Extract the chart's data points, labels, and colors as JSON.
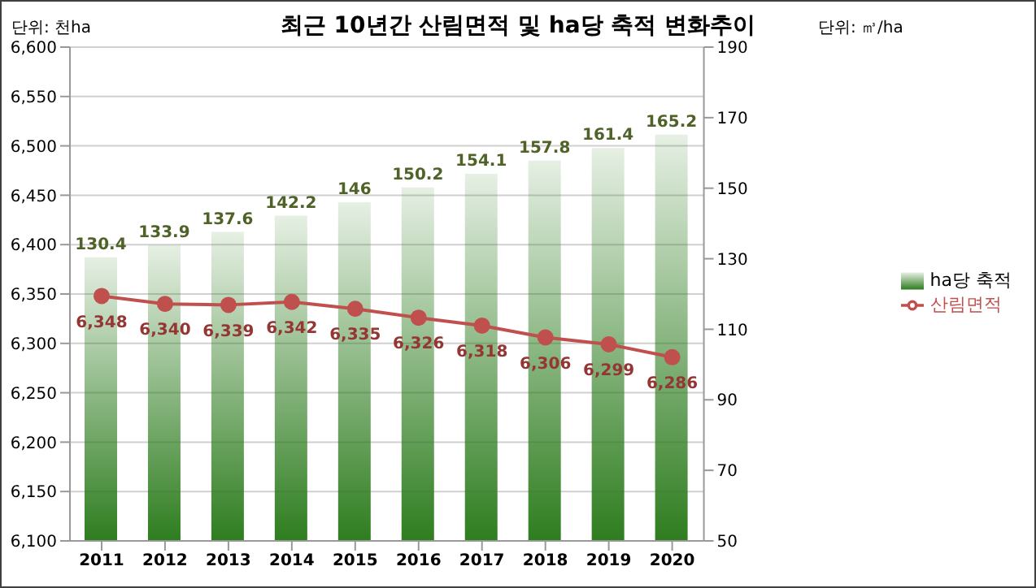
{
  "chart_data": {
    "type": "bar",
    "title": "최근 10년간 산림면적 및 ha당 축적 변화추이",
    "ylabel": "단위: 천ha",
    "y2label": "단위: ㎥/ha",
    "categories": [
      "2011",
      "2012",
      "2013",
      "2014",
      "2015",
      "2016",
      "2017",
      "2018",
      "2019",
      "2020"
    ],
    "series": [
      {
        "name": "ha당 축적",
        "axis": "y2",
        "color": "#2e7d1f",
        "values": [
          130.4,
          133.9,
          137.6,
          142.2,
          146,
          150.2,
          154.1,
          157.8,
          161.4,
          165.2
        ]
      },
      {
        "name": "산림면적",
        "type": "line",
        "axis": "y",
        "color": "#c0504d",
        "marker": "circle",
        "values": [
          6348,
          6340,
          6339,
          6342,
          6335,
          6326,
          6318,
          6306,
          6299,
          6286
        ],
        "value_labels": [
          "6,348",
          "6,340",
          "6,339",
          "6,342",
          "6,335",
          "6,326",
          "6,318",
          "6,306",
          "6,299",
          "6,286"
        ]
      }
    ],
    "ylim": [
      6100,
      6600
    ],
    "yticks": [
      {
        "value": 6100,
        "label": "6,100"
      },
      {
        "value": 6150,
        "label": "6,150"
      },
      {
        "value": 6200,
        "label": "6,200"
      },
      {
        "value": 6250,
        "label": "6,250"
      },
      {
        "value": 6300,
        "label": "6,300"
      },
      {
        "value": 6350,
        "label": "6,350"
      },
      {
        "value": 6400,
        "label": "6,400"
      },
      {
        "value": 6450,
        "label": "6,450"
      },
      {
        "value": 6500,
        "label": "6,500"
      },
      {
        "value": 6550,
        "label": "6,550"
      },
      {
        "value": 6600,
        "label": "6,600"
      }
    ],
    "y2lim": [
      50,
      190
    ],
    "y2ticks": [
      50,
      70,
      90,
      110,
      130,
      150,
      170,
      190
    ],
    "grid": "y",
    "legend": "right",
    "data_labels": true
  }
}
